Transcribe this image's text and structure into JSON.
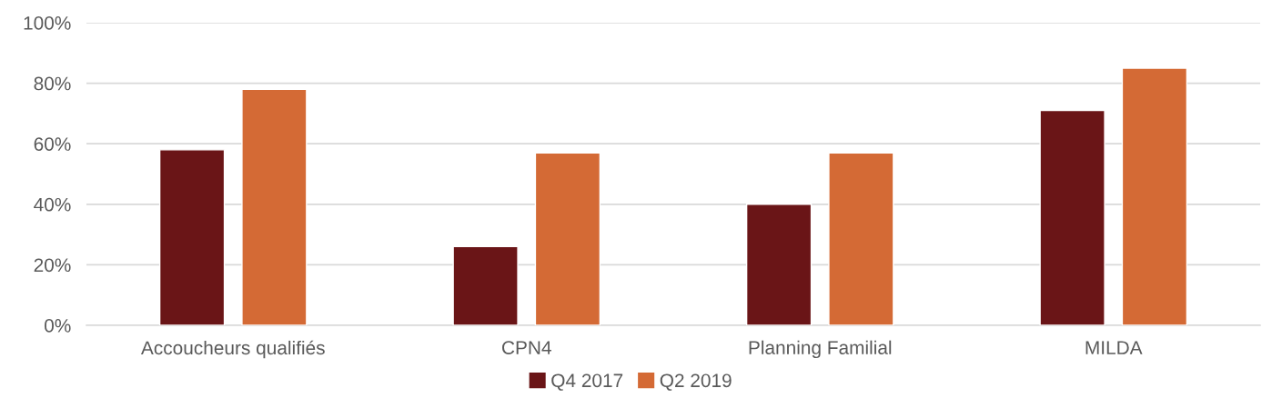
{
  "chart_data": {
    "type": "bar",
    "categories": [
      "Accoucheurs qualifiés",
      "CPN4",
      "Planning Familial",
      "MILDA"
    ],
    "series": [
      {
        "name": "Q4 2017",
        "color": "#6a1517",
        "values": [
          58,
          26,
          40,
          71
        ]
      },
      {
        "name": "Q2 2019",
        "color": "#d46a35",
        "values": [
          78,
          57,
          57,
          85
        ]
      }
    ],
    "ylim": [
      0,
      100
    ],
    "yticks": [
      {
        "value": 0,
        "label": "0%"
      },
      {
        "value": 20,
        "label": "20%"
      },
      {
        "value": 40,
        "label": "40%"
      },
      {
        "value": 60,
        "label": "60%"
      },
      {
        "value": 80,
        "label": "80%"
      },
      {
        "value": 100,
        "label": "100%"
      }
    ],
    "grid": "y",
    "legend": "bottom"
  }
}
